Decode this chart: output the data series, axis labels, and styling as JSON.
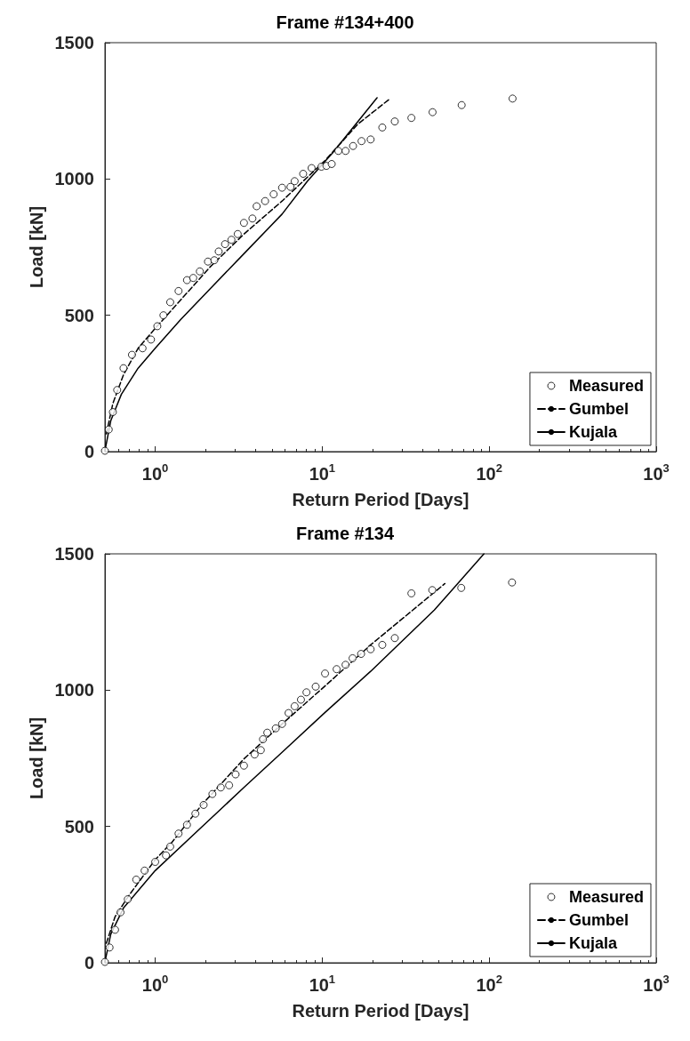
{
  "chart_data": [
    {
      "type": "scatter",
      "title": "Frame #134+400",
      "xlabel": "Return Period [Days]",
      "ylabel": "Load [kN]",
      "log": "x",
      "xlim": [
        0.5,
        1000
      ],
      "xticks": [
        {
          "value": 1,
          "label": "10$^{0}$"
        },
        {
          "value": 10,
          "label": "10$^{1}$"
        },
        {
          "value": 100,
          "label": "10$^{2}$"
        },
        {
          "value": 1000,
          "label": "10$^{3}$"
        }
      ],
      "ylim": [
        0,
        1500
      ],
      "yticks": [
        0,
        500,
        1000,
        1500
      ],
      "grid": false,
      "legend": "bottom right",
      "series": [
        {
          "name": "Measured",
          "marker": "circle",
          "color": "#000000",
          "x": [
            0.5,
            0.527,
            0.558,
            0.592,
            0.646,
            0.726,
            0.84,
            0.944,
            1.03,
            1.12,
            1.23,
            1.38,
            1.55,
            1.69,
            1.85,
            2.07,
            2.26,
            2.4,
            2.62,
            2.86,
            3.12,
            3.4,
            3.82,
            4.05,
            4.55,
            5.12,
            5.75,
            6.46,
            6.84,
            7.69,
            8.64,
            9.89,
            10.6,
            11.4,
            12.5,
            13.8,
            15.3,
            17.2,
            19.5,
            22.9,
            27.2,
            34.2,
            45.8,
            68.4,
            138
          ],
          "values": [
            3,
            81,
            145,
            226,
            306,
            355,
            379,
            411,
            460,
            500,
            548,
            589,
            629,
            637,
            661,
            697,
            702,
            734,
            761,
            777,
            798,
            839,
            855,
            900,
            919,
            944,
            968,
            971,
            992,
            1019,
            1040,
            1045,
            1048,
            1055,
            1103,
            1103,
            1121,
            1139,
            1145,
            1189,
            1211,
            1224,
            1245,
            1271,
            1295
          ]
        },
        {
          "name": "Gumbel",
          "type": "line",
          "line_style": "dashed",
          "color": "#000000",
          "x": [
            0.51,
            0.558,
            0.646,
            0.79,
            1.0,
            1.42,
            2.13,
            3.4,
            5.75,
            10.3,
            16.4,
            25.4
          ],
          "values": [
            65,
            177,
            282,
            379,
            452,
            556,
            677,
            798,
            919,
            1065,
            1202,
            1294
          ]
        },
        {
          "name": "Kujala",
          "type": "line",
          "line_style": "solid",
          "color": "#000000",
          "x": [
            0.5,
            0.542,
            0.627,
            0.79,
            1.0,
            1.42,
            2.13,
            3.4,
            5.75,
            8.16,
            11.6,
            21.3
          ],
          "values": [
            3,
            113,
            210,
            306,
            379,
            484,
            597,
            726,
            871,
            992,
            1097,
            1298
          ]
        }
      ]
    },
    {
      "type": "scatter",
      "title": "Frame #134",
      "xlabel": "Return Period [Days]",
      "ylabel": "Load [kN]",
      "log": "x",
      "xlim": [
        0.5,
        1000
      ],
      "xticks": [
        {
          "value": 1,
          "label": "10$^{0}$"
        },
        {
          "value": 10,
          "label": "10$^{1}$"
        },
        {
          "value": 100,
          "label": "10$^{2}$"
        },
        {
          "value": 1000,
          "label": "10$^{3}$"
        }
      ],
      "ylim": [
        0,
        1500
      ],
      "yticks": [
        0,
        500,
        1000,
        1500
      ],
      "grid": false,
      "legend": "bottom right",
      "series": [
        {
          "name": "Measured",
          "marker": "circle",
          "color": "#000000",
          "x": [
            0.5,
            0.533,
            0.575,
            0.62,
            0.685,
            0.77,
            0.864,
            1.0,
            1.16,
            1.23,
            1.38,
            1.55,
            1.74,
            1.95,
            2.2,
            2.47,
            2.77,
            3.03,
            3.4,
            3.94,
            4.29,
            4.42,
            4.69,
            5.27,
            5.75,
            6.29,
            6.84,
            7.46,
            8.05,
            9.14,
            10.4,
            12.2,
            13.8,
            15.2,
            17.1,
            19.5,
            22.9,
            27.2,
            34.2,
            45.6,
            68,
            137
          ],
          "values": [
            3,
            56,
            121,
            185,
            233,
            305,
            338,
            370,
            394,
            426,
            474,
            506,
            547,
            579,
            619,
            643,
            651,
            691,
            723,
            764,
            780,
            820,
            844,
            860,
            876,
            916,
            941,
            965,
            992,
            1013,
            1061,
            1077,
            1093,
            1117,
            1133,
            1150,
            1166,
            1191,
            1355,
            1367,
            1375,
            1395
          ]
        },
        {
          "name": "Gumbel",
          "type": "line",
          "line_style": "dashed",
          "color": "#000000",
          "x": [
            0.51,
            0.575,
            0.7,
            1.0,
            1.26,
            1.9,
            3.4,
            5.75,
            10.3,
            19.5,
            54.3
          ],
          "values": [
            72,
            169,
            249,
            378,
            442,
            579,
            748,
            876,
            1013,
            1166,
            1391
          ]
        },
        {
          "name": "Kujala",
          "type": "line",
          "line_style": "solid",
          "color": "#000000",
          "x": [
            0.5,
            0.542,
            0.646,
            1.0,
            1.9,
            3.4,
            5.75,
            10.3,
            19.5,
            46.9,
            93.0
          ],
          "values": [
            3,
            105,
            201,
            338,
            498,
            643,
            772,
            916,
            1069,
            1294,
            1500
          ]
        }
      ]
    }
  ]
}
